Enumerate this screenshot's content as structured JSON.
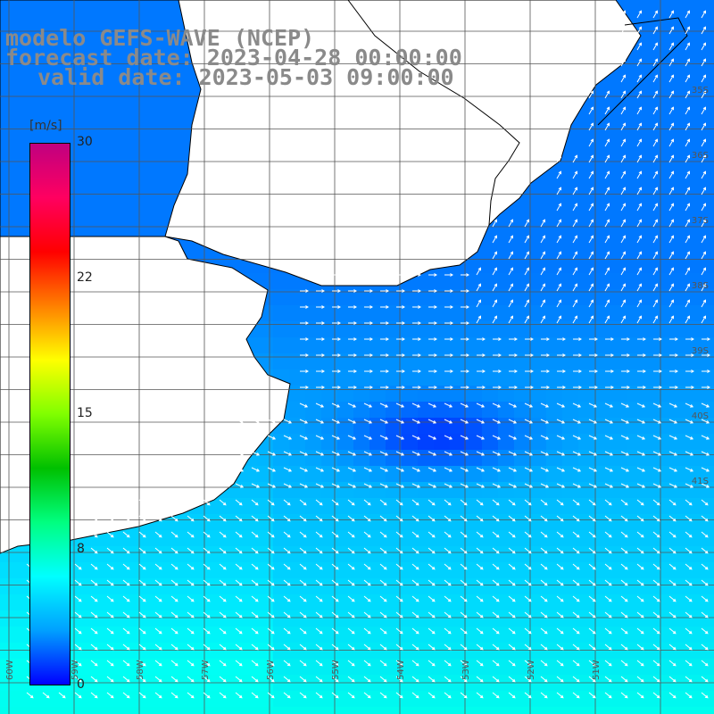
{
  "title": {
    "line1": "modelo GEFS-WAVE (NCEP)",
    "line2": "forecast date: 2023-04-28 00:00:00",
    "line3": "valid date: 2023-05-03 09:00:00"
  },
  "colorbar": {
    "unit": "[m/s]",
    "ticks": [
      "30",
      "22",
      "15",
      "8",
      "0"
    ],
    "tick_values": [
      30,
      22,
      15,
      8,
      0
    ],
    "min": 0,
    "max": 30,
    "colors": [
      "#0000ff",
      "#00a0ff",
      "#00ffff",
      "#00ff80",
      "#00c000",
      "#80ff00",
      "#ffff00",
      "#ff8000",
      "#ff0000",
      "#ff0060",
      "#c00080"
    ]
  },
  "map": {
    "lat_labels": [
      "35S",
      "36S",
      "37S",
      "38S",
      "39S",
      "40S",
      "41S"
    ],
    "lon_labels": [
      "60W",
      "59W",
      "58W",
      "57W",
      "56W",
      "55W",
      "54W",
      "53W",
      "52W",
      "51W"
    ],
    "land_color": "#ffffff",
    "grid_color": "#555555",
    "arrow_color": "#ffffff"
  }
}
